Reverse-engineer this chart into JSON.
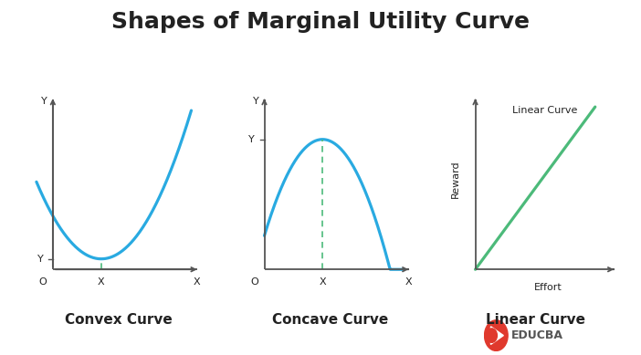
{
  "title": "Shapes of Marginal Utility Curve",
  "title_fontsize": 18,
  "title_fontweight": "bold",
  "bg_color": "#ffffff",
  "curve_color": "#29aae1",
  "dashed_color": "#4cba7a",
  "linear_color": "#4cba7a",
  "axis_color": "#555555",
  "label_color": "#222222",
  "subplot_labels": [
    "Convex Curve",
    "Concave Curve",
    "Linear Curve"
  ],
  "educba_red": "#e0392d",
  "educba_gray": "#555555",
  "subplot_caption_fontsize": 11,
  "subplot_caption_fontweight": "bold"
}
